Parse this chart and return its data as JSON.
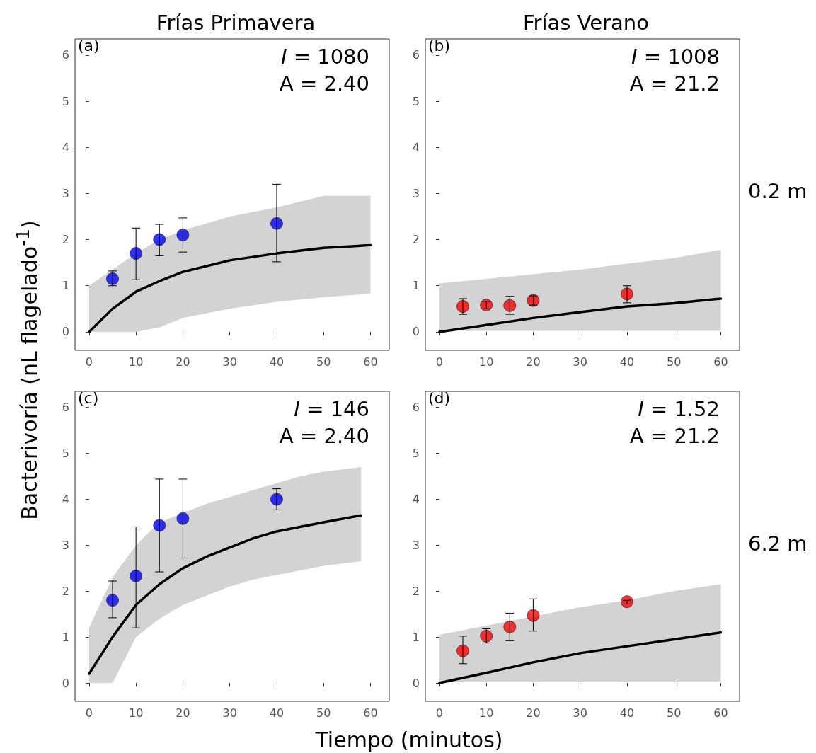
{
  "chart_data": [
    {
      "type": "scatter",
      "title": "Frías Primavera",
      "ylabel": "Bacterivoría (nL flagelado$^{-1}$)",
      "annotations": [
        "(a)",
        "I = 1080",
        "A = 2.40"
      ],
      "xlim": [
        -3,
        64
      ],
      "xticks": [
        0,
        10,
        20,
        30,
        40,
        50,
        60
      ],
      "ylim": [
        -0.4,
        6.35
      ],
      "yticks": [
        0,
        1,
        2,
        3,
        4,
        5,
        6
      ],
      "grid": false,
      "marker": "circle",
      "series": [
        {
          "type": "line",
          "marker": "none",
          "color": "#000000",
          "x": [
            0,
            5,
            10,
            15,
            20,
            30,
            40,
            50,
            60
          ],
          "values": [
            0,
            0.5,
            0.87,
            1.1,
            1.3,
            1.55,
            1.7,
            1.82,
            1.88
          ],
          "lower": [
            0,
            0,
            0,
            0.1,
            0.3,
            0.5,
            0.65,
            0.75,
            0.83
          ],
          "upper": [
            1.0,
            1.35,
            1.7,
            2.0,
            2.2,
            2.5,
            2.7,
            2.95,
            2.95
          ]
        },
        {
          "color": "#0000ff",
          "x": [
            5,
            10,
            15,
            20,
            40
          ],
          "values": [
            1.15,
            1.7,
            2.0,
            2.1,
            2.35
          ],
          "errors": [
            [
              1.0,
              1.32
            ],
            [
              1.13,
              2.25
            ],
            [
              1.65,
              2.33
            ],
            [
              1.73,
              2.47
            ],
            [
              1.52,
              3.2
            ]
          ]
        }
      ]
    },
    {
      "type": "scatter",
      "title": "Frías Verano",
      "annotations": [
        "(b)",
        "I = 1008",
        "A = 21.2",
        "0.2 m"
      ],
      "xlim": [
        -3,
        64
      ],
      "xticks": [
        0,
        10,
        20,
        30,
        40,
        50,
        60
      ],
      "ylim": [
        -0.4,
        6.35
      ],
      "yticks": [
        0,
        1,
        2,
        3,
        4,
        5,
        6
      ],
      "grid": false,
      "marker": "circle",
      "series": [
        {
          "type": "line",
          "marker": "none",
          "color": "#000000",
          "x": [
            0,
            10,
            20,
            30,
            40,
            50,
            60
          ],
          "values": [
            0,
            0.15,
            0.3,
            0.43,
            0.55,
            0.62,
            0.72
          ],
          "lower": [
            0.02,
            0.02,
            0.02,
            0.02,
            0.02,
            0.02,
            0.02
          ],
          "upper": [
            1.05,
            1.15,
            1.25,
            1.35,
            1.48,
            1.6,
            1.78
          ]
        },
        {
          "color": "#ff0000",
          "x": [
            5,
            10,
            15,
            20,
            40
          ],
          "values": [
            0.55,
            0.58,
            0.57,
            0.68,
            0.82
          ],
          "errors": [
            [
              0.38,
              0.72
            ],
            [
              0.5,
              0.66
            ],
            [
              0.38,
              0.77
            ],
            [
              0.58,
              0.78
            ],
            [
              0.63,
              1.0
            ]
          ]
        }
      ]
    },
    {
      "type": "scatter",
      "xlabel": "Tiempo (minutos)",
      "annotations": [
        "(c)",
        "I = 146",
        "A = 2.40"
      ],
      "xlim": [
        -3,
        64
      ],
      "xticks": [
        0,
        10,
        20,
        30,
        40,
        50,
        60
      ],
      "ylim": [
        -0.4,
        6.35
      ],
      "yticks": [
        0,
        1,
        2,
        3,
        4,
        5,
        6
      ],
      "grid": false,
      "marker": "circle",
      "series": [
        {
          "type": "line",
          "marker": "none",
          "color": "#000000",
          "x": [
            0,
            5,
            10,
            15,
            20,
            25,
            30,
            35,
            40,
            45,
            50,
            58
          ],
          "values": [
            0.2,
            1.0,
            1.7,
            2.15,
            2.5,
            2.75,
            2.95,
            3.15,
            3.3,
            3.4,
            3.5,
            3.65
          ],
          "lower": [
            0,
            0,
            1.0,
            1.4,
            1.7,
            1.9,
            2.1,
            2.25,
            2.35,
            2.45,
            2.55,
            2.65
          ],
          "upper": [
            1.2,
            2.3,
            3.0,
            3.5,
            3.7,
            3.9,
            4.05,
            4.2,
            4.35,
            4.5,
            4.6,
            4.7
          ]
        },
        {
          "color": "#0000ff",
          "x": [
            5,
            10,
            15,
            20,
            40
          ],
          "values": [
            1.8,
            2.33,
            3.43,
            3.58,
            4.0
          ],
          "errors": [
            [
              1.42,
              2.22
            ],
            [
              1.2,
              3.4
            ],
            [
              2.42,
              4.44
            ],
            [
              2.72,
              4.44
            ],
            [
              3.77,
              4.23
            ]
          ]
        }
      ]
    },
    {
      "type": "scatter",
      "annotations": [
        "(d)",
        "I = 1.52",
        "A = 21.2",
        "6.2 m"
      ],
      "xlim": [
        -3,
        64
      ],
      "xticks": [
        0,
        10,
        20,
        30,
        40,
        50,
        60
      ],
      "ylim": [
        -0.4,
        6.35
      ],
      "yticks": [
        0,
        1,
        2,
        3,
        4,
        5,
        6
      ],
      "grid": false,
      "marker": "circle",
      "series": [
        {
          "type": "line",
          "marker": "none",
          "color": "#000000",
          "x": [
            0,
            10,
            20,
            30,
            40,
            50,
            60
          ],
          "values": [
            0,
            0.22,
            0.45,
            0.65,
            0.8,
            0.95,
            1.1
          ],
          "lower": [
            0.03,
            0.03,
            0.03,
            0.03,
            0.03,
            0.03,
            0.03
          ],
          "upper": [
            1.05,
            1.25,
            1.45,
            1.65,
            1.8,
            2.0,
            2.15
          ]
        },
        {
          "color": "#ff0000",
          "x": [
            5,
            10,
            15,
            20,
            40
          ],
          "values": [
            0.7,
            1.02,
            1.22,
            1.47,
            1.77
          ],
          "errors": [
            [
              0.42,
              1.02
            ],
            [
              0.87,
              1.18
            ],
            [
              0.92,
              1.52
            ],
            [
              1.13,
              1.83
            ],
            [
              1.72,
              1.8
            ]
          ]
        }
      ]
    }
  ]
}
